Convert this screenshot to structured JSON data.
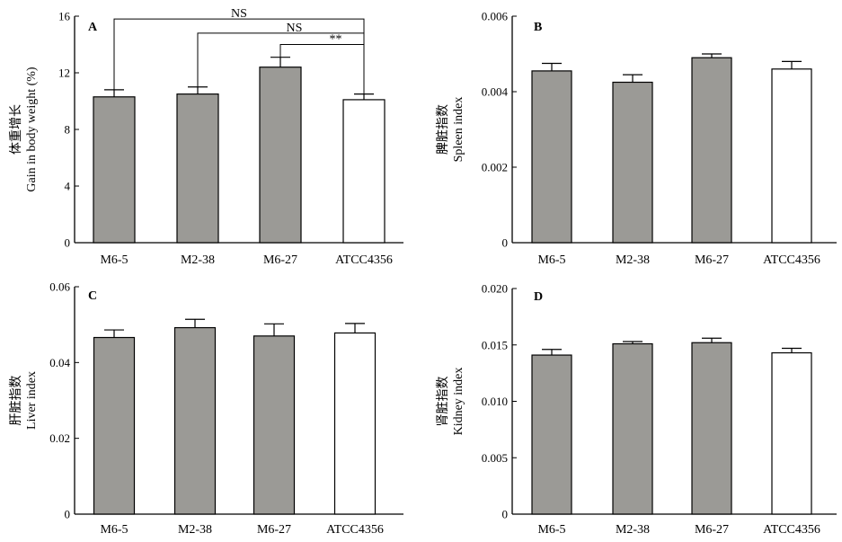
{
  "colors": {
    "filled": "#9b9a96",
    "open": "#ffffff",
    "stroke": "#000000"
  },
  "chart_data": [
    {
      "type": "bar",
      "panel": "A",
      "ylabel_cn": "体重增长",
      "ylabel": "Gain in body weight (%)",
      "categories": [
        "M6-5",
        "M2-38",
        "M6-27",
        "ATCC4356"
      ],
      "values": [
        10.3,
        10.5,
        12.4,
        10.1
      ],
      "errors": [
        0.5,
        0.5,
        0.7,
        0.4
      ],
      "fills": [
        "filled",
        "filled",
        "filled",
        "open"
      ],
      "ylim": [
        0,
        16
      ],
      "yticks": [
        "0",
        "4",
        "8",
        "12",
        "16"
      ],
      "grid": false,
      "annotations": [
        {
          "from": 0,
          "to": 3,
          "text": "NS"
        },
        {
          "from": 1,
          "to": 3,
          "text": "NS"
        },
        {
          "from": 2,
          "to": 3,
          "text": "**"
        }
      ]
    },
    {
      "type": "bar",
      "panel": "B",
      "ylabel_cn": "脾脏指数",
      "ylabel": "Spleen index",
      "categories": [
        "M6-5",
        "M2-38",
        "M6-27",
        "ATCC4356"
      ],
      "values": [
        0.00455,
        0.00425,
        0.0049,
        0.0046
      ],
      "errors": [
        0.0002,
        0.0002,
        0.0001,
        0.0002
      ],
      "fills": [
        "filled",
        "filled",
        "filled",
        "open"
      ],
      "ylim": [
        0,
        0.006
      ],
      "yticks": [
        "0",
        "0.002",
        "0.004",
        "0.006"
      ],
      "grid": false
    },
    {
      "type": "bar",
      "panel": "C",
      "ylabel_cn": "肝脏指数",
      "ylabel": "Liver index",
      "categories": [
        "M6-5",
        "M2-38",
        "M6-27",
        "ATCC4356"
      ],
      "values": [
        0.0466,
        0.0492,
        0.047,
        0.0478
      ],
      "errors": [
        0.002,
        0.0022,
        0.0032,
        0.0025
      ],
      "fills": [
        "filled",
        "filled",
        "filled",
        "open"
      ],
      "ylim": [
        0,
        0.06
      ],
      "yticks": [
        "0",
        "0.02",
        "0.04",
        "0.06"
      ],
      "grid": false
    },
    {
      "type": "bar",
      "panel": "D",
      "ylabel_cn": "肾脏指数",
      "ylabel": "Kidney index",
      "categories": [
        "M6-5",
        "M2-38",
        "M6-27",
        "ATCC4356"
      ],
      "values": [
        0.0141,
        0.0151,
        0.0152,
        0.0143
      ],
      "errors": [
        0.0005,
        0.0002,
        0.0004,
        0.0004
      ],
      "fills": [
        "filled",
        "filled",
        "filled",
        "open"
      ],
      "ylim": [
        0,
        0.02
      ],
      "yticks": [
        "0",
        "0.005",
        "0.010",
        "0.015",
        "0.020"
      ],
      "grid": false
    }
  ]
}
